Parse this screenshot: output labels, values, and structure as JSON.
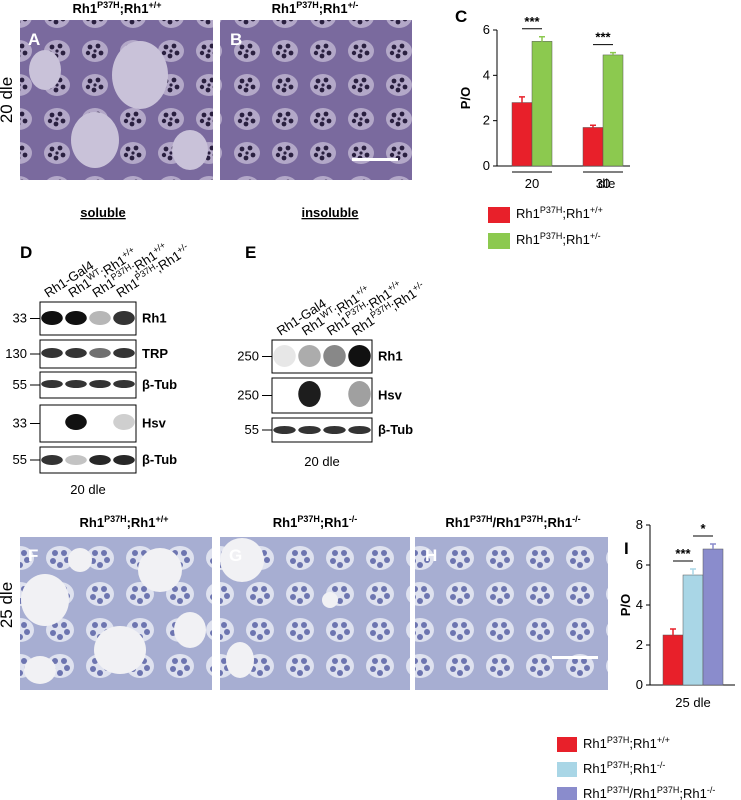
{
  "top_row": {
    "row_label": "20 dle",
    "panels": [
      {
        "letter": "A",
        "genotype": [
          "Rh1",
          "P37H",
          ";Rh1",
          "+/+"
        ]
      },
      {
        "letter": "B",
        "genotype": [
          "Rh1",
          "P37H",
          ";Rh1",
          "+/-"
        ]
      }
    ]
  },
  "blot_D": {
    "letter": "D",
    "heading": "soluble",
    "lanes": [
      [
        "Rh1-Gal4"
      ],
      [
        "Rh1",
        "WT",
        ";Rh1",
        "+/+"
      ],
      [
        "Rh1",
        "P37H",
        ";Rh1",
        "+/+"
      ],
      [
        "Rh1",
        "P37H",
        ";Rh1",
        "+/-"
      ]
    ],
    "rows": [
      {
        "marker": "33",
        "label": "Rh1"
      },
      {
        "marker": "130",
        "label": "TRP"
      },
      {
        "marker": "55",
        "label": "β-Tub"
      },
      {
        "marker": "33",
        "label": "Hsv"
      },
      {
        "marker": "55",
        "label": "β-Tub"
      }
    ],
    "caption": "20 dle"
  },
  "blot_E": {
    "letter": "E",
    "heading": "insoluble",
    "lanes": [
      [
        "Rh1-Gal4"
      ],
      [
        "Rh1",
        "WT",
        ";Rh1",
        "+/+"
      ],
      [
        "Rh1",
        "P37H",
        ";Rh1",
        "+/+"
      ],
      [
        "Rh1",
        "P37H",
        ";Rh1",
        "+/-"
      ]
    ],
    "rows": [
      {
        "marker": "250",
        "label": "Rh1"
      },
      {
        "marker": "250",
        "label": "Hsv"
      },
      {
        "marker": "55",
        "label": "β-Tub"
      }
    ],
    "caption": "20 dle"
  },
  "bottom_row": {
    "row_label": "25 dle",
    "panels": [
      {
        "letter": "F",
        "genotype": [
          "Rh1",
          "P37H",
          ";Rh1",
          "+/+"
        ]
      },
      {
        "letter": "G",
        "genotype": [
          "Rh1",
          "P37H",
          ";Rh1",
          "-/-"
        ]
      },
      {
        "letter": "H",
        "genotype": [
          "Rh1",
          "P37H",
          "/Rh1",
          "P37H",
          ";Rh1",
          "-/-"
        ]
      }
    ]
  },
  "chart_data": [
    {
      "type": "bar",
      "letter": "C",
      "y_label": "P/O",
      "x_label": "dle",
      "categories": [
        "20",
        "30"
      ],
      "ylim": [
        0,
        6
      ],
      "yticks": [
        0,
        2,
        4,
        6
      ],
      "series": [
        {
          "name": [
            "Rh1",
            "P37H",
            ";Rh1",
            "+/+"
          ],
          "color": "#e8202a",
          "values": [
            2.8,
            1.7
          ],
          "errors": [
            0.25,
            0.1
          ]
        },
        {
          "name": [
            "Rh1",
            "P37H",
            ";Rh1",
            "+/-"
          ],
          "color": "#8cc94f",
          "values": [
            5.5,
            4.9
          ],
          "errors": [
            0.2,
            0.1
          ]
        }
      ],
      "significance": [
        "***",
        "***"
      ]
    },
    {
      "type": "bar",
      "letter": "I",
      "y_label": "P/O",
      "categories": [
        "25 dle"
      ],
      "ylim": [
        0,
        8
      ],
      "yticks": [
        0,
        2,
        4,
        6,
        8
      ],
      "series": [
        {
          "name": [
            "Rh1",
            "P37H",
            ";Rh1",
            "+/+"
          ],
          "color": "#e8202a",
          "values": [
            2.5
          ],
          "errors": [
            0.3
          ]
        },
        {
          "name": [
            "Rh1",
            "P37H",
            ";Rh1",
            "-/-"
          ],
          "color": "#a9d6e6",
          "values": [
            5.5
          ],
          "errors": [
            0.3
          ]
        },
        {
          "name": [
            "Rh1",
            "P37H",
            "/Rh1",
            "P37H",
            ";Rh1",
            "-/-"
          ],
          "color": "#8a8ccc",
          "values": [
            6.8
          ],
          "errors": [
            0.25
          ]
        }
      ],
      "significance": [
        "***",
        "*"
      ]
    }
  ]
}
